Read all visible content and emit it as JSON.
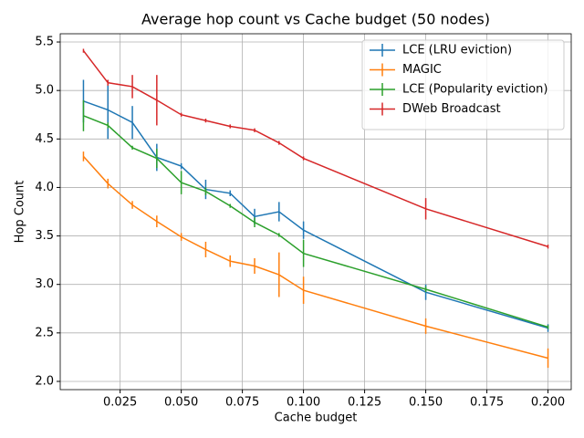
{
  "chart_data": {
    "type": "errorbar-line",
    "title": "Average hop count vs Cache budget (50 nodes)",
    "x_label": "Cache budget",
    "y_label": "Hop Count",
    "x": [
      0.01,
      0.02,
      0.03,
      0.04,
      0.05,
      0.06,
      0.07,
      0.08,
      0.09,
      0.1,
      0.15,
      0.2
    ],
    "series": [
      {
        "name": "LCE (LRU eviction)",
        "color": "#1f77b4",
        "values": [
          4.89,
          4.8,
          4.67,
          4.31,
          4.22,
          3.98,
          3.94,
          3.7,
          3.75,
          3.56,
          2.92,
          2.55
        ],
        "errors": [
          0.22,
          0.3,
          0.17,
          0.14,
          0.03,
          0.1,
          0.03,
          0.08,
          0.1,
          0.09,
          0.08,
          0.04
        ]
      },
      {
        "name": "MAGIC",
        "color": "#ff7f0e",
        "values": [
          4.32,
          4.04,
          3.82,
          3.65,
          3.49,
          3.36,
          3.24,
          3.19,
          3.1,
          2.94,
          2.57,
          2.24
        ],
        "errors": [
          0.05,
          0.05,
          0.04,
          0.06,
          0.04,
          0.08,
          0.06,
          0.08,
          0.23,
          0.14,
          0.08,
          0.1
        ]
      },
      {
        "name": "LCE (Popularity eviction)",
        "color": "#2ca02c",
        "values": [
          4.74,
          4.64,
          4.41,
          4.3,
          4.05,
          3.96,
          3.81,
          3.64,
          3.51,
          3.32,
          2.95,
          2.56
        ],
        "errors": [
          0.16,
          0.03,
          0.02,
          0.1,
          0.12,
          0.04,
          0.02,
          0.05,
          0.02,
          0.14,
          0.03,
          0.02
        ]
      },
      {
        "name": "DWeb Broadcast",
        "color": "#d62728",
        "values": [
          5.41,
          5.08,
          5.04,
          4.9,
          4.75,
          4.69,
          4.63,
          4.59,
          4.46,
          4.3,
          3.78,
          3.39
        ],
        "errors": [
          0.02,
          0.03,
          0.12,
          0.26,
          0.02,
          0.02,
          0.02,
          0.02,
          0.02,
          0.02,
          0.11,
          0.02
        ]
      }
    ],
    "xlim": [
      0.0005,
      0.2095
    ],
    "ylim": [
      1.915,
      5.585
    ],
    "xticks": [
      0.025,
      {
        "value": 0.05,
        "label": "0.050"
      },
      0.075,
      {
        "value": 0.1,
        "label": "0.100"
      },
      0.125,
      {
        "value": 0.15,
        "label": "0.150"
      },
      0.175,
      {
        "value": 0.2,
        "label": "0.200"
      }
    ],
    "yticks": [
      {
        "value": 2,
        "label": "2.0"
      },
      2.5,
      {
        "value": 3,
        "label": "3.0"
      },
      3.5,
      {
        "value": 4,
        "label": "4.0"
      },
      4.5,
      {
        "value": 5,
        "label": "5.0"
      },
      5.5
    ],
    "grid": true,
    "legend": "upper right"
  }
}
